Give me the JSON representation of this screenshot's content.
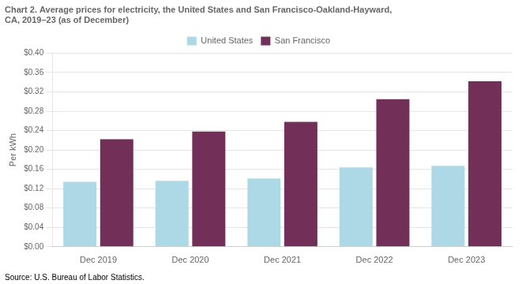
{
  "chart_data": {
    "type": "bar",
    "title": [
      "Chart 2. Average prices for electricity, the United States and San Francisco-Oakland-Hayward,",
      "CA, 2019–23 (as of December)"
    ],
    "ylabel": "Per kWh",
    "annotations": [
      "Source: U.S. Bureau of Labor Statistics."
    ],
    "categories": [
      "Dec 2019",
      "Dec 2020",
      "Dec 2021",
      "Dec 2022",
      "Dec 2023"
    ],
    "series": [
      {
        "name": "United States",
        "color": "#add8e6",
        "values": [
          0.134,
          0.136,
          0.141,
          0.164,
          0.167
        ]
      },
      {
        "name": "San Francisco",
        "color": "#722f57",
        "values": [
          0.222,
          0.238,
          0.258,
          0.305,
          0.342
        ]
      }
    ],
    "ylim": [
      0,
      0.4
    ],
    "yticks": [
      {
        "value": 0.0,
        "label": "$0.00"
      },
      {
        "value": 0.04,
        "label": "$0.04"
      },
      {
        "value": 0.08,
        "label": "$0.08"
      },
      {
        "value": 0.12,
        "label": "$0.12"
      },
      {
        "value": 0.16,
        "label": "$0.16"
      },
      {
        "value": 0.2,
        "label": "$0.20"
      },
      {
        "value": 0.24,
        "label": "$0.24"
      },
      {
        "value": 0.28,
        "label": "$0.28"
      },
      {
        "value": 0.32,
        "label": "$0.32"
      },
      {
        "value": 0.36,
        "label": "$0.36"
      },
      {
        "value": 0.4,
        "label": "$0.40"
      }
    ],
    "grid": true,
    "legend": "top"
  }
}
